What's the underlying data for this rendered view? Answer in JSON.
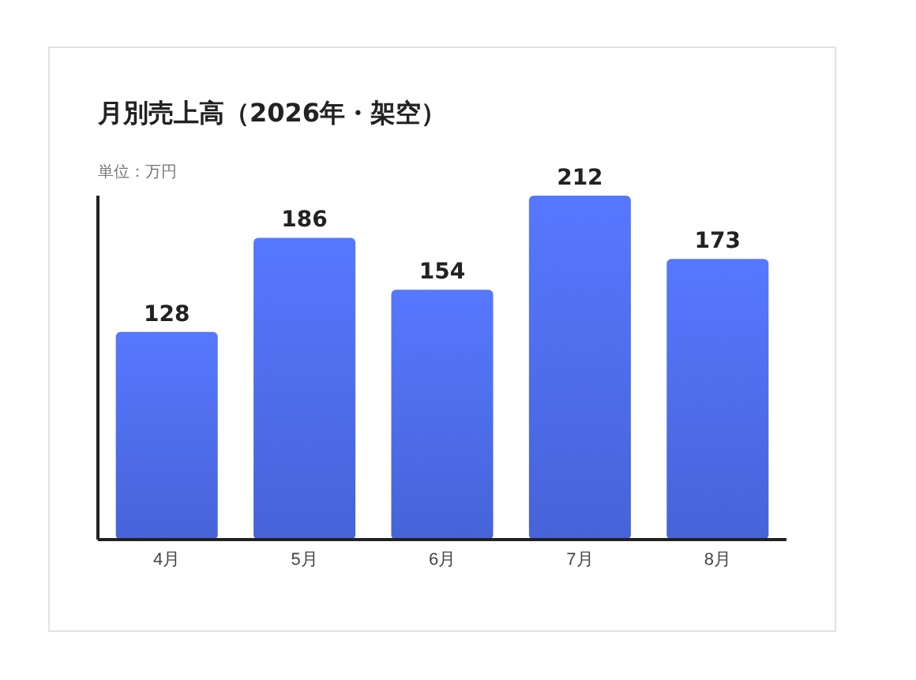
{
  "chart_data": {
    "type": "bar",
    "title": "月別売上高（2026年・架空）",
    "annotations": [
      "単位：万円"
    ],
    "categories": [
      "4月",
      "5月",
      "6月",
      "7月",
      "8月"
    ],
    "values": [
      128,
      186,
      154,
      212,
      173
    ],
    "color": "#4f6ef0",
    "ylim": [
      0,
      212
    ],
    "data_labels": true,
    "tick_labels": "x"
  }
}
